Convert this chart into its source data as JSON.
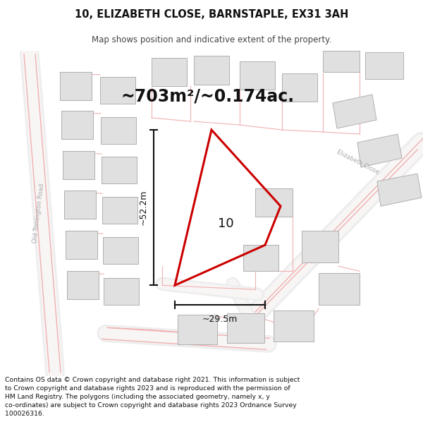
{
  "title_line1": "10, ELIZABETH CLOSE, BARNSTAPLE, EX31 3AH",
  "title_line2": "Map shows position and indicative extent of the property.",
  "area_text": "~703m²/~0.174ac.",
  "dim_vertical": "~52.2m",
  "dim_horizontal": "~29.5m",
  "label_10": "10",
  "footer": "Contains OS data © Crown copyright and database right 2021. This information is subject to Crown copyright and database rights 2023 and is reproduced with the permission of HM Land Registry. The polygons (including the associated geometry, namely x, y co-ordinates) are subject to Crown copyright and database rights 2023 Ordnance Survey 100026316.",
  "bg_color": "#ffffff",
  "property_color": "#cc0000",
  "dim_color": "#111111",
  "road_pink": "#f0b0b0",
  "road_pink2": "#e8a0a0",
  "building_fill": "#e0e0e0",
  "building_edge": "#b0b0b0",
  "label_color": "#aaaaaa",
  "title_color": "#111111",
  "subtitle_color": "#444444"
}
